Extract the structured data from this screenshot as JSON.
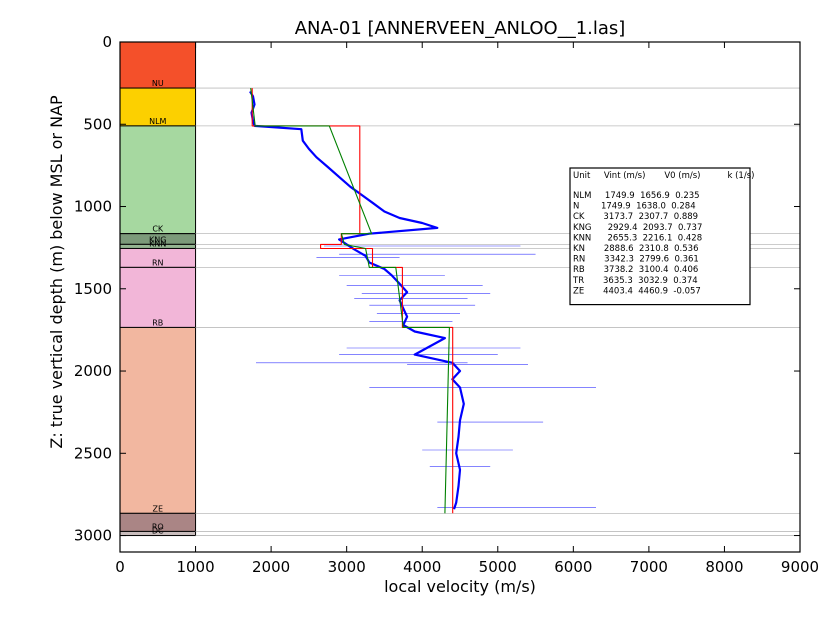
{
  "chart_data": {
    "type": "line",
    "title": "ANA-01 [ANNERVEEN_ANLOO__1.las]",
    "xlabel": "local velocity (m/s)",
    "ylabel": "Z: true vertical depth (m) below MSL or NAP",
    "xlim": [
      0,
      9000
    ],
    "ylim": [
      3100,
      0
    ],
    "y_inverted": true,
    "xticks": [
      "0",
      "1000",
      "2000",
      "3000",
      "4000",
      "5000",
      "6000",
      "7000",
      "8000",
      "9000"
    ],
    "yticks": [
      "0",
      "500",
      "1000",
      "1500",
      "2000",
      "2500",
      "3000"
    ],
    "strat_column": {
      "x_range": [
        0,
        1000
      ],
      "units": [
        {
          "name": "NU",
          "top": 0,
          "base": 280,
          "color": "#f4502a"
        },
        {
          "name": "NLM",
          "top": 280,
          "base": 510,
          "color": "#fcd000"
        },
        {
          "name": "CK",
          "top": 510,
          "base": 1165,
          "color": "#a6d8a0"
        },
        {
          "name": "KNG",
          "top": 1165,
          "base": 1230,
          "color": "#7c9a7a"
        },
        {
          "name": "KNN",
          "top": 1230,
          "base": 1255,
          "color": "#95b592"
        },
        {
          "name": "RN",
          "top": 1255,
          "base": 1370,
          "color": "#f2b6d8"
        },
        {
          "name": "RB",
          "top": 1370,
          "base": 1735,
          "color": "#f2b6d8"
        },
        {
          "name": "ZE",
          "top": 1735,
          "base": 2865,
          "color": "#f2b7a0"
        },
        {
          "name": "RO",
          "top": 2865,
          "base": 2975,
          "color": "#aa8585"
        },
        {
          "name": "DC",
          "top": 2975,
          "base": 3000,
          "color": "#c8bcbc"
        }
      ]
    },
    "series": [
      {
        "color": "#0000ff",
        "kind": "velocity-log",
        "points": [
          [
            1720,
            300
          ],
          [
            1760,
            330
          ],
          [
            1780,
            380
          ],
          [
            1740,
            430
          ],
          [
            1760,
            480
          ],
          [
            1780,
            510
          ],
          [
            2400,
            530
          ],
          [
            2420,
            600
          ],
          [
            2500,
            650
          ],
          [
            2600,
            700
          ],
          [
            2750,
            760
          ],
          [
            2900,
            820
          ],
          [
            3050,
            880
          ],
          [
            3200,
            930
          ],
          [
            3350,
            980
          ],
          [
            3500,
            1030
          ],
          [
            3700,
            1070
          ],
          [
            4000,
            1100
          ],
          [
            4200,
            1130
          ],
          [
            3300,
            1165
          ],
          [
            2900,
            1200
          ],
          [
            3000,
            1230
          ],
          [
            3100,
            1260
          ],
          [
            3250,
            1300
          ],
          [
            3300,
            1340
          ],
          [
            3500,
            1380
          ],
          [
            3600,
            1420
          ],
          [
            3700,
            1470
          ],
          [
            3800,
            1520
          ],
          [
            3700,
            1570
          ],
          [
            3750,
            1620
          ],
          [
            3800,
            1670
          ],
          [
            3750,
            1720
          ],
          [
            3900,
            1760
          ],
          [
            4300,
            1800
          ],
          [
            4100,
            1850
          ],
          [
            3900,
            1900
          ],
          [
            4400,
            1950
          ],
          [
            4500,
            2000
          ],
          [
            4400,
            2050
          ],
          [
            4500,
            2100
          ],
          [
            4550,
            2200
          ],
          [
            4500,
            2300
          ],
          [
            4480,
            2400
          ],
          [
            4450,
            2500
          ],
          [
            4500,
            2600
          ],
          [
            4480,
            2700
          ],
          [
            4450,
            2800
          ],
          [
            4420,
            2840
          ]
        ]
      },
      {
        "color": "#ff0000",
        "kind": "interval-velocity",
        "points": [
          [
            1750,
            280
          ],
          [
            1750,
            510
          ],
          [
            3174,
            510
          ],
          [
            3174,
            1165
          ],
          [
            2929,
            1165
          ],
          [
            2929,
            1230
          ],
          [
            2655,
            1230
          ],
          [
            2655,
            1255
          ],
          [
            3342,
            1255
          ],
          [
            3342,
            1370
          ],
          [
            3738,
            1370
          ],
          [
            3738,
            1735
          ],
          [
            4403,
            1735
          ],
          [
            4403,
            2865
          ]
        ]
      },
      {
        "color": "#008000",
        "kind": "v0-k-model",
        "points": [
          [
            1730,
            280
          ],
          [
            1790,
            510
          ],
          [
            2770,
            510
          ],
          [
            3330,
            1165
          ],
          [
            2930,
            1165
          ],
          [
            2970,
            1230
          ],
          [
            3250,
            1255
          ],
          [
            3300,
            1370
          ],
          [
            3650,
            1370
          ],
          [
            3750,
            1735
          ],
          [
            4360,
            1735
          ],
          [
            4300,
            2865
          ]
        ]
      }
    ],
    "outlier_spikes": [
      [
        2700,
        1240,
        5300
      ],
      [
        2900,
        1290,
        5500
      ],
      [
        2600,
        1310,
        3700
      ],
      [
        2900,
        1420,
        4300
      ],
      [
        3000,
        1480,
        4800
      ],
      [
        3200,
        1530,
        4900
      ],
      [
        3100,
        1560,
        4600
      ],
      [
        3300,
        1600,
        4700
      ],
      [
        3400,
        1650,
        4500
      ],
      [
        3300,
        1700,
        4400
      ],
      [
        3000,
        1860,
        5300
      ],
      [
        2900,
        1900,
        5000
      ],
      [
        1800,
        1950,
        4600
      ],
      [
        3800,
        1960,
        5400
      ],
      [
        3300,
        2100,
        6300
      ],
      [
        4200,
        2310,
        5600
      ],
      [
        4000,
        2480,
        5200
      ],
      [
        4100,
        2580,
        4900
      ],
      [
        4200,
        2830,
        6300
      ]
    ],
    "table": {
      "header": "Unit     Vint (m/s)       V0 (m/s)          k (1/s)",
      "rows": [
        "NLM     1749.9  1656.9  0.235",
        "N        1749.9  1638.0  0.284",
        "CK       3173.7  2307.7  0.889",
        "KNG      2929.4  2093.7  0.737",
        "KNN      2655.3  2216.1  0.428",
        "KN       2888.6  2310.8  0.536",
        "RN       3342.3  2799.6  0.361",
        "RB       3738.2  3100.4  0.406",
        "TR       3635.3  3032.9  0.374",
        "ZE       4403.4  4460.9  -0.057"
      ]
    },
    "grid": false,
    "horizontal_boundary_lines": true
  }
}
